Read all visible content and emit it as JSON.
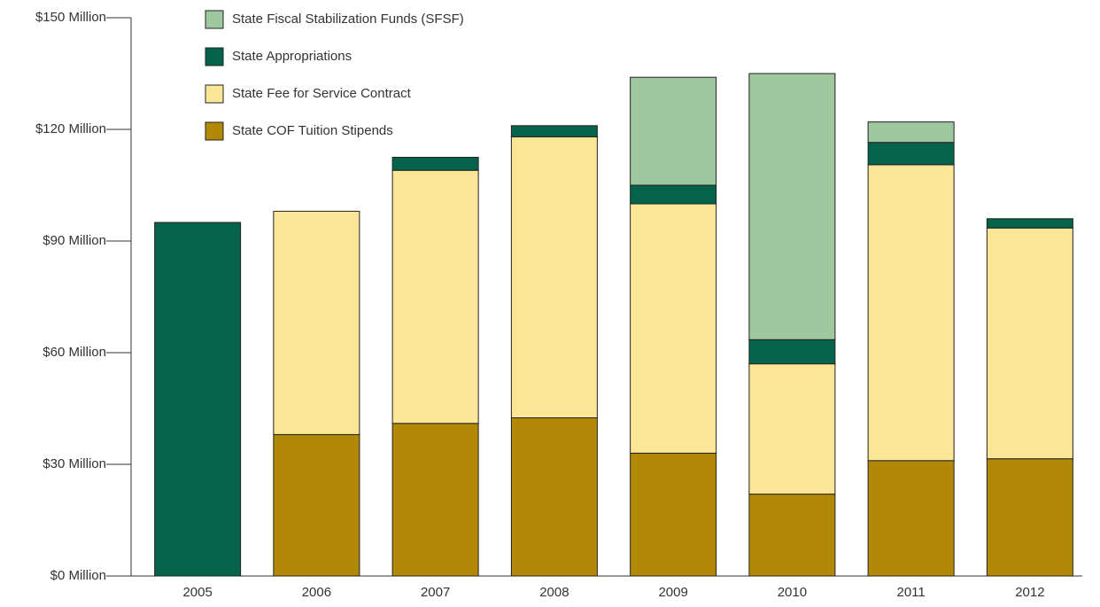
{
  "chart_data": {
    "type": "stacked-bar",
    "categories": [
      "2005",
      "2006",
      "2007",
      "2008",
      "2009",
      "2010",
      "2011",
      "2012"
    ],
    "series": [
      {
        "name": "State Fiscal Stabilization Funds (SFSF)",
        "color": "#9fc89f",
        "values": [
          0,
          0,
          0,
          0,
          29,
          71.5,
          5.5,
          0
        ]
      },
      {
        "name": "State Appropriations",
        "color": "#04634a",
        "values": [
          95,
          0,
          3.5,
          3,
          5,
          6.5,
          6,
          2.5
        ]
      },
      {
        "name": "State Fee for Service Contract",
        "color": "#fbe597",
        "values": [
          0,
          60,
          68,
          75.5,
          67,
          35,
          79.5,
          62
        ]
      },
      {
        "name": "State COF Tuition Stipends",
        "color": "#b28807",
        "values": [
          0,
          38,
          41,
          42.5,
          33,
          22,
          31,
          31.5
        ]
      }
    ],
    "ylim": [
      0,
      150
    ],
    "yticks": [
      {
        "value": 0,
        "label": "$0 Million"
      },
      {
        "value": 30,
        "label": "$30 Million"
      },
      {
        "value": 60,
        "label": "$60 Million"
      },
      {
        "value": 90,
        "label": "$90 Million"
      },
      {
        "value": 120,
        "label": "$120 Million"
      },
      {
        "value": 150,
        "label": "$150 Million"
      }
    ]
  }
}
